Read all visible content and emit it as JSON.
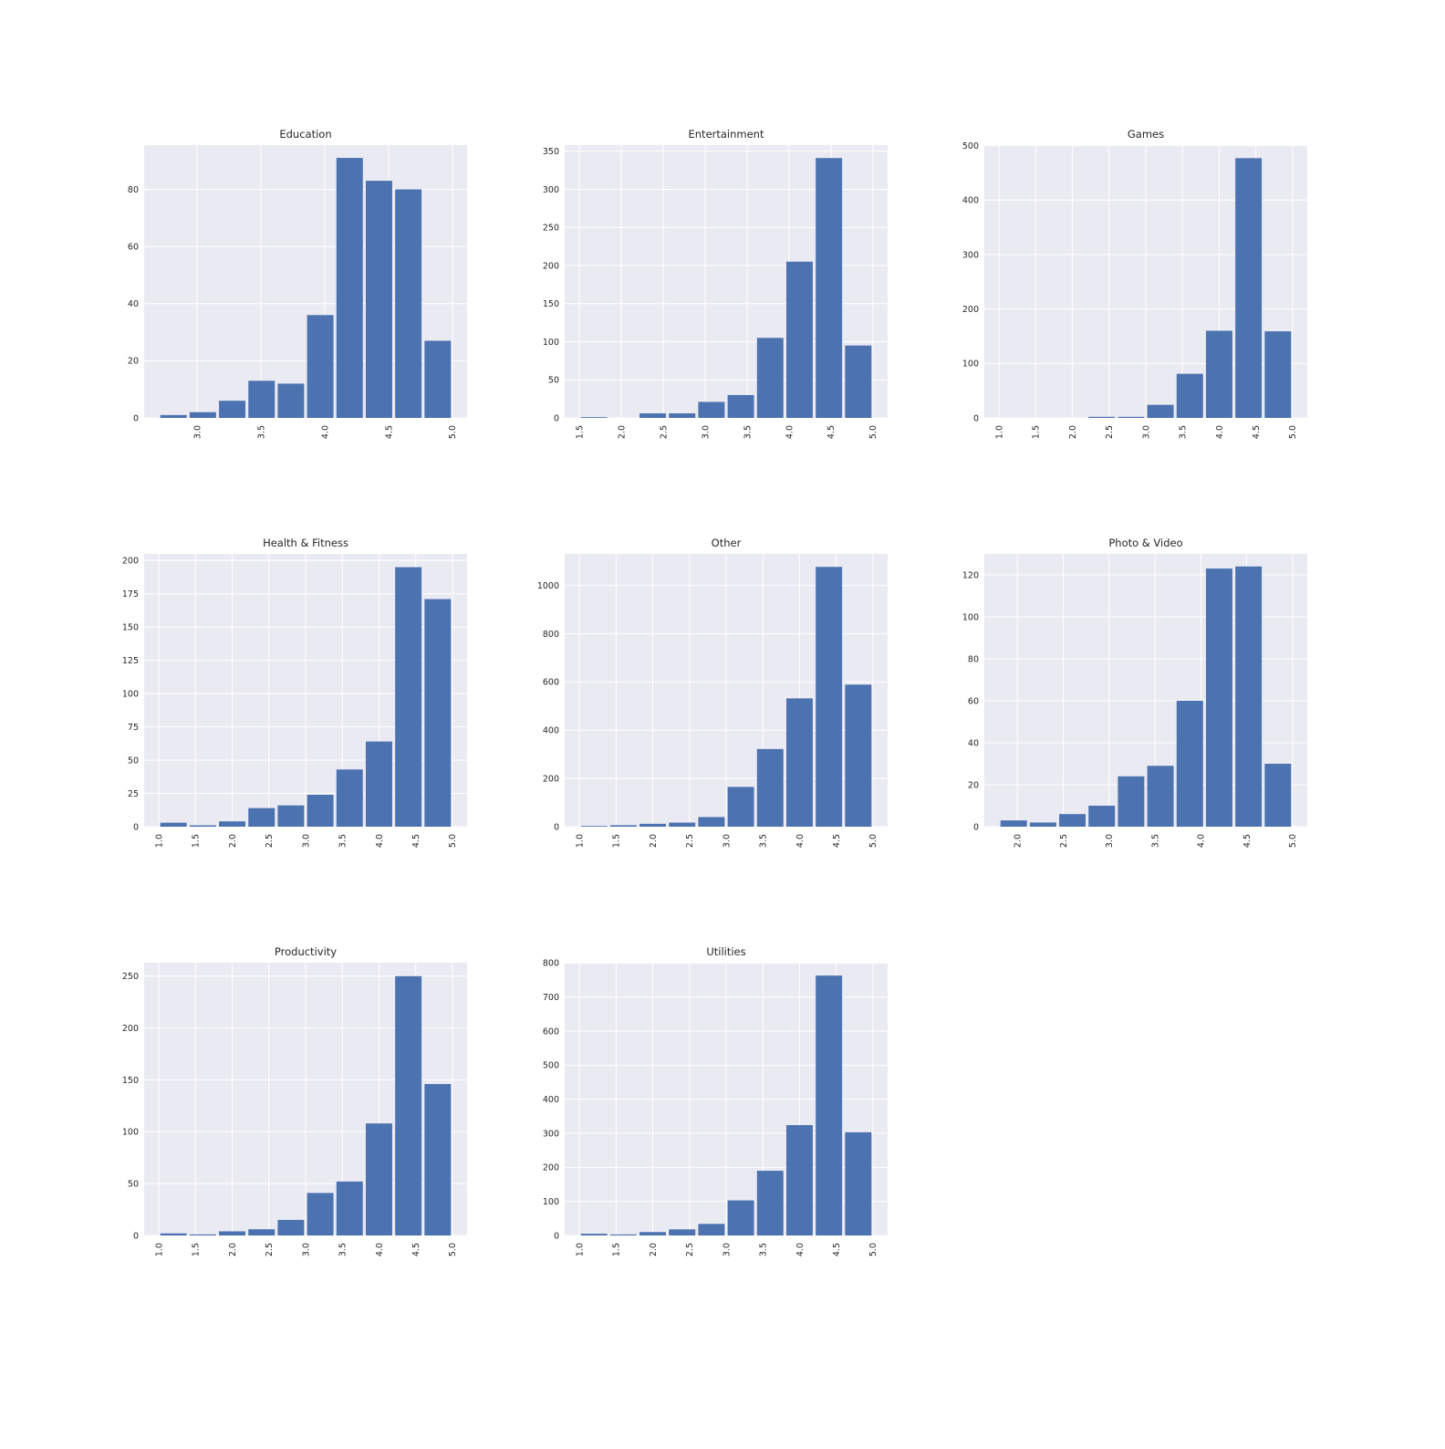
{
  "colors": {
    "bar": "#4c72b0",
    "plot_background": "#eaeaf2",
    "grid": "#ffffff",
    "text": "#262626",
    "figure_background": "#ffffff"
  },
  "chart_data": [
    {
      "type": "bar",
      "title": "Education",
      "bin_edges": [
        2.7,
        2.93,
        3.16,
        3.39,
        3.62,
        3.85,
        4.08,
        4.31,
        4.54,
        4.77,
        5.0
      ],
      "values": [
        1,
        2,
        6,
        13,
        12,
        36,
        91,
        83,
        80,
        27
      ],
      "xlim": [
        2.585,
        5.115
      ],
      "ylim": [
        0,
        95.5
      ],
      "xticks": [
        3.0,
        3.5,
        4.0,
        4.5,
        5.0
      ],
      "xticklabels": [
        "3.0",
        "3.5",
        "4.0",
        "4.5",
        "5.0"
      ],
      "yticks": [
        0,
        20,
        40,
        60,
        80
      ],
      "yticklabels": [
        "0",
        "20",
        "40",
        "60",
        "80"
      ],
      "grid": true
    },
    {
      "type": "bar",
      "title": "Entertainment",
      "bin_edges": [
        1.5,
        1.85,
        2.2,
        2.55,
        2.9,
        3.25,
        3.6,
        3.95,
        4.3,
        4.65,
        5.0
      ],
      "values": [
        1,
        0,
        6,
        6,
        21,
        30,
        105,
        205,
        341,
        95
      ],
      "xlim": [
        1.325,
        5.175
      ],
      "ylim": [
        0,
        358
      ],
      "xticks": [
        1.5,
        2.0,
        2.5,
        3.0,
        3.5,
        4.0,
        4.5,
        5.0
      ],
      "xticklabels": [
        "1.5",
        "2.0",
        "2.5",
        "3.0",
        "3.5",
        "4.0",
        "4.5",
        "5.0"
      ],
      "yticks": [
        0,
        50,
        100,
        150,
        200,
        250,
        300,
        350
      ],
      "yticklabels": [
        "0",
        "50",
        "100",
        "150",
        "200",
        "250",
        "300",
        "350"
      ],
      "grid": true
    },
    {
      "type": "bar",
      "title": "Games",
      "bin_edges": [
        1.0,
        1.4,
        1.8,
        2.2,
        2.6,
        3.0,
        3.4,
        3.8,
        4.2,
        4.6,
        5.0
      ],
      "values": [
        0,
        0,
        0,
        2,
        2,
        24,
        81,
        160,
        477,
        159
      ],
      "xlim": [
        0.8,
        5.2
      ],
      "ylim": [
        0,
        501
      ],
      "xticks": [
        1.0,
        1.5,
        2.0,
        2.5,
        3.0,
        3.5,
        4.0,
        4.5,
        5.0
      ],
      "xticklabels": [
        "1.0",
        "1.5",
        "2.0",
        "2.5",
        "3.0",
        "3.5",
        "4.0",
        "4.5",
        "5.0"
      ],
      "yticks": [
        0,
        100,
        200,
        300,
        400,
        500
      ],
      "yticklabels": [
        "0",
        "100",
        "200",
        "300",
        "400",
        "500"
      ],
      "grid": true
    },
    {
      "type": "bar",
      "title": "Health & Fitness",
      "bin_edges": [
        1.0,
        1.4,
        1.8,
        2.2,
        2.6,
        3.0,
        3.4,
        3.8,
        4.2,
        4.6,
        5.0
      ],
      "values": [
        3,
        1,
        4,
        14,
        16,
        24,
        43,
        64,
        195,
        171
      ],
      "xlim": [
        0.8,
        5.2
      ],
      "ylim": [
        0,
        205
      ],
      "xticks": [
        1.0,
        1.5,
        2.0,
        2.5,
        3.0,
        3.5,
        4.0,
        4.5,
        5.0
      ],
      "xticklabels": [
        "1.0",
        "1.5",
        "2.0",
        "2.5",
        "3.0",
        "3.5",
        "4.0",
        "4.5",
        "5.0"
      ],
      "yticks": [
        0,
        25,
        50,
        75,
        100,
        125,
        150,
        175,
        200
      ],
      "yticklabels": [
        "0",
        "25",
        "50",
        "75",
        "100",
        "125",
        "150",
        "175",
        "200"
      ],
      "grid": true
    },
    {
      "type": "bar",
      "title": "Other",
      "bin_edges": [
        1.0,
        1.4,
        1.8,
        2.2,
        2.6,
        3.0,
        3.4,
        3.8,
        4.2,
        4.6,
        5.0
      ],
      "values": [
        3,
        6,
        12,
        17,
        40,
        165,
        322,
        532,
        1077,
        589
      ],
      "xlim": [
        0.8,
        5.2
      ],
      "ylim": [
        0,
        1131
      ],
      "xticks": [
        1.0,
        1.5,
        2.0,
        2.5,
        3.0,
        3.5,
        4.0,
        4.5,
        5.0
      ],
      "xticklabels": [
        "1.0",
        "1.5",
        "2.0",
        "2.5",
        "3.0",
        "3.5",
        "4.0",
        "4.5",
        "5.0"
      ],
      "yticks": [
        0,
        200,
        400,
        600,
        800,
        1000
      ],
      "yticklabels": [
        "0",
        "200",
        "400",
        "600",
        "800",
        "1000"
      ],
      "grid": true
    },
    {
      "type": "bar",
      "title": "Photo & Video",
      "bin_edges": [
        1.8,
        2.12,
        2.44,
        2.76,
        3.08,
        3.4,
        3.72,
        4.04,
        4.36,
        4.68,
        5.0
      ],
      "values": [
        3,
        2,
        6,
        10,
        24,
        29,
        60,
        123,
        124,
        30
      ],
      "xlim": [
        1.64,
        5.16
      ],
      "ylim": [
        0,
        130
      ],
      "xticks": [
        2.0,
        2.5,
        3.0,
        3.5,
        4.0,
        4.5,
        5.0
      ],
      "xticklabels": [
        "2.0",
        "2.5",
        "3.0",
        "3.5",
        "4.0",
        "4.5",
        "5.0"
      ],
      "yticks": [
        0,
        20,
        40,
        60,
        80,
        100,
        120
      ],
      "yticklabels": [
        "0",
        "20",
        "40",
        "60",
        "80",
        "100",
        "120"
      ],
      "grid": true
    },
    {
      "type": "bar",
      "title": "Productivity",
      "bin_edges": [
        1.0,
        1.4,
        1.8,
        2.2,
        2.6,
        3.0,
        3.4,
        3.8,
        4.2,
        4.6,
        5.0
      ],
      "values": [
        2,
        1,
        4,
        6,
        15,
        41,
        52,
        108,
        250,
        146
      ],
      "xlim": [
        0.8,
        5.2
      ],
      "ylim": [
        0,
        263
      ],
      "xticks": [
        1.0,
        1.5,
        2.0,
        2.5,
        3.0,
        3.5,
        4.0,
        4.5,
        5.0
      ],
      "xticklabels": [
        "1.0",
        "1.5",
        "2.0",
        "2.5",
        "3.0",
        "3.5",
        "4.0",
        "4.5",
        "5.0"
      ],
      "yticks": [
        0,
        50,
        100,
        150,
        200,
        250
      ],
      "yticklabels": [
        "0",
        "50",
        "100",
        "150",
        "200",
        "250"
      ],
      "grid": true
    },
    {
      "type": "bar",
      "title": "Utilities",
      "bin_edges": [
        1.0,
        1.4,
        1.8,
        2.2,
        2.6,
        3.0,
        3.4,
        3.8,
        4.2,
        4.6,
        5.0
      ],
      "values": [
        5,
        3,
        10,
        18,
        34,
        103,
        190,
        324,
        763,
        303
      ],
      "xlim": [
        0.8,
        5.2
      ],
      "ylim": [
        0,
        801
      ],
      "xticks": [
        1.0,
        1.5,
        2.0,
        2.5,
        3.0,
        3.5,
        4.0,
        4.5,
        5.0
      ],
      "xticklabels": [
        "1.0",
        "1.5",
        "2.0",
        "2.5",
        "3.0",
        "3.5",
        "4.0",
        "4.5",
        "5.0"
      ],
      "yticks": [
        0,
        100,
        200,
        300,
        400,
        500,
        600,
        700,
        800
      ],
      "yticklabels": [
        "0",
        "100",
        "200",
        "300",
        "400",
        "500",
        "600",
        "700",
        "800"
      ],
      "grid": true
    }
  ]
}
